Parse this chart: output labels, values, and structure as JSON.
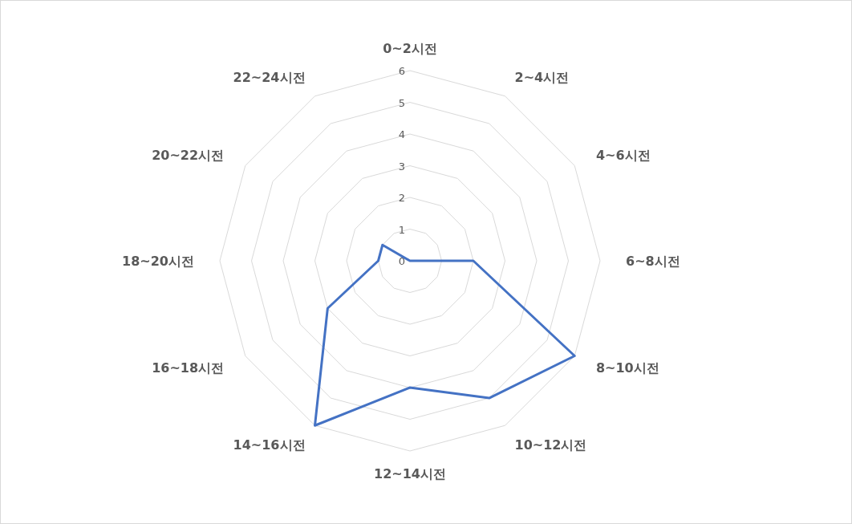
{
  "chart_data": {
    "type": "radar",
    "categories": [
      "0~2시전",
      "2~4시전",
      "4~6시전",
      "6~8시전",
      "8~10시전",
      "10~12시전",
      "12~14시전",
      "14~16시전",
      "16~18시전",
      "18~20시전",
      "20~22시전",
      "22~24시전"
    ],
    "series": [
      {
        "color": "#4472c4",
        "values": [
          0,
          0,
          0,
          2,
          6,
          5,
          4,
          6,
          3,
          1,
          1,
          0
        ]
      }
    ],
    "ylim": [
      0,
      6
    ],
    "yticks": [
      0,
      1,
      2,
      3,
      4,
      5,
      6
    ],
    "grid": true
  }
}
